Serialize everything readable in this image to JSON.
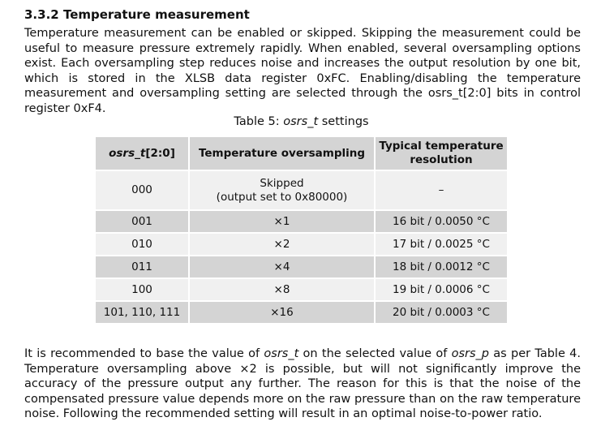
{
  "section": {
    "number": "3.3.2",
    "title": "Temperature measurement"
  },
  "intro_paragraph": "Temperature measurement can be enabled or skipped. Skipping the measurement could be useful to measure pressure extremely rapidly. When enabled, several oversampling options exist. Each oversampling step reduces noise and increases the output resolution by one bit, which is stored in the XLSB data register 0xFC. Enabling/disabling the temperature measurement and oversampling setting are selected through the osrs_t[2:0] bits in control register 0xF4.",
  "table": {
    "caption_prefix": "Table 5: ",
    "caption_italic": "osrs_t",
    "caption_suffix": " settings",
    "headers": {
      "col1_italic": "osrs_t",
      "col1_rest": "[2:0]",
      "col2": "Temperature oversampling",
      "col3": "Typical temperature resolution"
    },
    "rows": [
      {
        "osrs": "000",
        "oversampling": "Skipped",
        "oversampling_note": "(output set to 0x80000)",
        "resolution": "–"
      },
      {
        "osrs": "001",
        "oversampling": "×1",
        "resolution": "16 bit / 0.0050 °C"
      },
      {
        "osrs": "010",
        "oversampling": "×2",
        "resolution": "17 bit / 0.0025 °C"
      },
      {
        "osrs": "011",
        "oversampling": "×4",
        "resolution": "18 bit / 0.0012 °C"
      },
      {
        "osrs": "100",
        "oversampling": "×8",
        "resolution": "19 bit / 0.0006 °C"
      },
      {
        "osrs": "101, 110, 111",
        "oversampling": "×16",
        "resolution": "20 bit / 0.0003 °C"
      }
    ]
  },
  "outro": {
    "t1": "It is recommended to base the value of ",
    "i1": "osrs_t",
    "t2": " on the selected value of ",
    "i2": "osrs_p",
    "t3": " as per Table 4. Temperature oversampling above ×2 is possible, but will not significantly improve the accuracy of the pressure output any further. The reason for this is that the noise of the compensated pressure value depends more on the raw pressure than on the raw temperature noise. Following the recommended setting will result in an optimal noise-to-power ratio."
  }
}
